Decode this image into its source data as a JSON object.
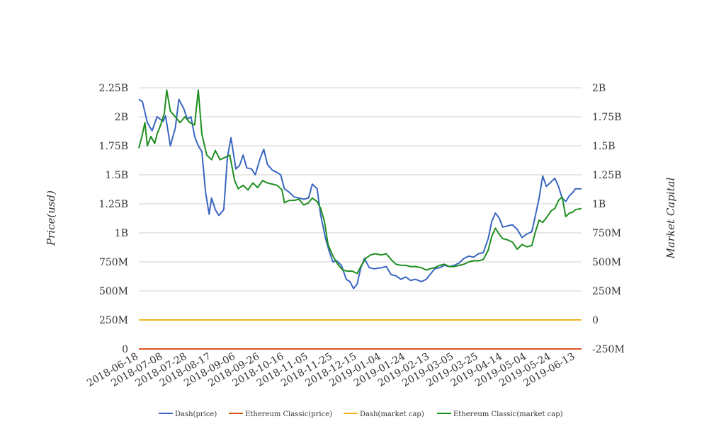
{
  "chart_data": {
    "type": "line",
    "title": "",
    "ylabel_left": "Price(usd)",
    "ylabel_right": "Market Capital",
    "grid": true,
    "legend_position": "bottom",
    "x_ticks": [
      "2018-06-18",
      "2018-07-08",
      "2018-07-28",
      "2018-08-17",
      "2018-09-06",
      "2018-09-26",
      "2018-10-16",
      "2018-11-05",
      "2018-11-25",
      "2018-12-15",
      "2019-01-04",
      "2019-01-24",
      "2019-02-13",
      "2019-03-05",
      "2019-03-25",
      "2019-04-14",
      "2019-05-04",
      "2019-05-24",
      "2019-06-13"
    ],
    "x_range": [
      "2018-06-18",
      "2019-06-18"
    ],
    "y_left": {
      "min": 0,
      "max": 2250000000,
      "ticks": [
        0,
        250000000,
        500000000,
        750000000,
        1000000000,
        1250000000,
        1500000000,
        1750000000,
        2000000000,
        2250000000
      ],
      "tick_labels": [
        "0",
        "250M",
        "500M",
        "750M",
        "1B",
        "1.25B",
        "1.5B",
        "1.75B",
        "2B",
        "2.25B"
      ]
    },
    "y_right": {
      "min": -250000000,
      "max": 2000000000,
      "ticks": [
        -250000000,
        0,
        250000000,
        500000000,
        750000000,
        1000000000,
        1250000000,
        1500000000,
        1750000000,
        2000000000
      ],
      "tick_labels": [
        "-250M",
        "0",
        "250M",
        "500M",
        "750M",
        "1B",
        "1.25B",
        "1.5B",
        "1.75B",
        "2B"
      ]
    },
    "series": [
      {
        "name": "Dash(price)",
        "axis": "left",
        "color": "#3a66c0",
        "points": [
          [
            "2018-06-18",
            2150000000
          ],
          [
            "2018-06-21",
            2130000000
          ],
          [
            "2018-06-25",
            1950000000
          ],
          [
            "2018-06-29",
            1880000000
          ],
          [
            "2018-07-03",
            2000000000
          ],
          [
            "2018-07-08",
            1960000000
          ],
          [
            "2018-07-10",
            2010000000
          ],
          [
            "2018-07-14",
            1750000000
          ],
          [
            "2018-07-18",
            1900000000
          ],
          [
            "2018-07-21",
            2150000000
          ],
          [
            "2018-07-25",
            2070000000
          ],
          [
            "2018-07-28",
            1980000000
          ],
          [
            "2018-07-31",
            2000000000
          ],
          [
            "2018-08-03",
            1830000000
          ],
          [
            "2018-08-06",
            1750000000
          ],
          [
            "2018-08-09",
            1700000000
          ],
          [
            "2018-08-12",
            1350000000
          ],
          [
            "2018-08-15",
            1160000000
          ],
          [
            "2018-08-17",
            1300000000
          ],
          [
            "2018-08-20",
            1200000000
          ],
          [
            "2018-08-23",
            1150000000
          ],
          [
            "2018-08-27",
            1200000000
          ],
          [
            "2018-08-30",
            1650000000
          ],
          [
            "2018-09-02",
            1820000000
          ],
          [
            "2018-09-06",
            1550000000
          ],
          [
            "2018-09-09",
            1580000000
          ],
          [
            "2018-09-12",
            1670000000
          ],
          [
            "2018-09-15",
            1560000000
          ],
          [
            "2018-09-19",
            1550000000
          ],
          [
            "2018-09-22",
            1500000000
          ],
          [
            "2018-09-26",
            1640000000
          ],
          [
            "2018-09-29",
            1720000000
          ],
          [
            "2018-10-02",
            1590000000
          ],
          [
            "2018-10-06",
            1540000000
          ],
          [
            "2018-10-10",
            1520000000
          ],
          [
            "2018-10-13",
            1500000000
          ],
          [
            "2018-10-16",
            1380000000
          ],
          [
            "2018-10-20",
            1350000000
          ],
          [
            "2018-10-24",
            1310000000
          ],
          [
            "2018-10-28",
            1300000000
          ],
          [
            "2018-11-01",
            1290000000
          ],
          [
            "2018-11-05",
            1300000000
          ],
          [
            "2018-11-08",
            1420000000
          ],
          [
            "2018-11-12",
            1380000000
          ],
          [
            "2018-11-15",
            1150000000
          ],
          [
            "2018-11-19",
            950000000
          ],
          [
            "2018-11-22",
            840000000
          ],
          [
            "2018-11-25",
            750000000
          ],
          [
            "2018-11-28",
            760000000
          ],
          [
            "2018-12-02",
            720000000
          ],
          [
            "2018-12-06",
            600000000
          ],
          [
            "2018-12-09",
            580000000
          ],
          [
            "2018-12-12",
            520000000
          ],
          [
            "2018-12-15",
            560000000
          ],
          [
            "2018-12-18",
            700000000
          ],
          [
            "2018-12-21",
            780000000
          ],
          [
            "2018-12-25",
            700000000
          ],
          [
            "2018-12-29",
            690000000
          ],
          [
            "2019-01-04",
            700000000
          ],
          [
            "2019-01-08",
            710000000
          ],
          [
            "2019-01-12",
            640000000
          ],
          [
            "2019-01-16",
            630000000
          ],
          [
            "2019-01-20",
            600000000
          ],
          [
            "2019-01-24",
            620000000
          ],
          [
            "2019-01-28",
            590000000
          ],
          [
            "2019-02-01",
            600000000
          ],
          [
            "2019-02-06",
            580000000
          ],
          [
            "2019-02-10",
            600000000
          ],
          [
            "2019-02-13",
            640000000
          ],
          [
            "2019-02-17",
            690000000
          ],
          [
            "2019-02-21",
            700000000
          ],
          [
            "2019-02-25",
            720000000
          ],
          [
            "2019-03-01",
            710000000
          ],
          [
            "2019-03-05",
            720000000
          ],
          [
            "2019-03-09",
            740000000
          ],
          [
            "2019-03-13",
            780000000
          ],
          [
            "2019-03-17",
            800000000
          ],
          [
            "2019-03-21",
            790000000
          ],
          [
            "2019-03-25",
            820000000
          ],
          [
            "2019-03-29",
            830000000
          ],
          [
            "2019-04-02",
            950000000
          ],
          [
            "2019-04-05",
            1100000000
          ],
          [
            "2019-04-08",
            1170000000
          ],
          [
            "2019-04-11",
            1130000000
          ],
          [
            "2019-04-14",
            1050000000
          ],
          [
            "2019-04-18",
            1060000000
          ],
          [
            "2019-04-22",
            1070000000
          ],
          [
            "2019-04-26",
            1030000000
          ],
          [
            "2019-04-30",
            960000000
          ],
          [
            "2019-05-04",
            990000000
          ],
          [
            "2019-05-08",
            1010000000
          ],
          [
            "2019-05-11",
            1150000000
          ],
          [
            "2019-05-14",
            1300000000
          ],
          [
            "2019-05-17",
            1490000000
          ],
          [
            "2019-05-20",
            1400000000
          ],
          [
            "2019-05-24",
            1440000000
          ],
          [
            "2019-05-27",
            1470000000
          ],
          [
            "2019-05-30",
            1400000000
          ],
          [
            "2019-06-02",
            1300000000
          ],
          [
            "2019-06-05",
            1270000000
          ],
          [
            "2019-06-08",
            1320000000
          ],
          [
            "2019-06-11",
            1350000000
          ],
          [
            "2019-06-13",
            1380000000
          ],
          [
            "2019-06-18",
            1380000000
          ]
        ]
      },
      {
        "name": "Ethereum Classic(price)",
        "axis": "left",
        "color": "#d6541e",
        "points": [
          [
            "2018-06-18",
            5000
          ],
          [
            "2019-06-18",
            5000
          ]
        ]
      },
      {
        "name": "Dash(market cap)",
        "axis": "right",
        "color": "#f0b61f",
        "points": [
          [
            "2018-06-18",
            0
          ],
          [
            "2019-06-18",
            0
          ]
        ]
      },
      {
        "name": "Ethereum Classic(market cap)",
        "axis": "right",
        "color": "#1f8f1f",
        "points": [
          [
            "2018-06-18",
            1480000000
          ],
          [
            "2018-06-21",
            1600000000
          ],
          [
            "2018-06-23",
            1700000000
          ],
          [
            "2018-06-25",
            1500000000
          ],
          [
            "2018-06-28",
            1580000000
          ],
          [
            "2018-07-01",
            1520000000
          ],
          [
            "2018-07-03",
            1600000000
          ],
          [
            "2018-07-06",
            1680000000
          ],
          [
            "2018-07-09",
            1780000000
          ],
          [
            "2018-07-11",
            1980000000
          ],
          [
            "2018-07-14",
            1800000000
          ],
          [
            "2018-07-18",
            1750000000
          ],
          [
            "2018-07-22",
            1700000000
          ],
          [
            "2018-07-26",
            1750000000
          ],
          [
            "2018-07-30",
            1700000000
          ],
          [
            "2018-08-03",
            1680000000
          ],
          [
            "2018-08-06",
            1980000000
          ],
          [
            "2018-08-09",
            1600000000
          ],
          [
            "2018-08-13",
            1420000000
          ],
          [
            "2018-08-17",
            1380000000
          ],
          [
            "2018-08-20",
            1460000000
          ],
          [
            "2018-08-24",
            1380000000
          ],
          [
            "2018-08-28",
            1400000000
          ],
          [
            "2018-09-01",
            1420000000
          ],
          [
            "2018-09-05",
            1200000000
          ],
          [
            "2018-09-08",
            1130000000
          ],
          [
            "2018-09-12",
            1160000000
          ],
          [
            "2018-09-16",
            1120000000
          ],
          [
            "2018-09-20",
            1180000000
          ],
          [
            "2018-09-24",
            1140000000
          ],
          [
            "2018-09-28",
            1200000000
          ],
          [
            "2018-10-02",
            1180000000
          ],
          [
            "2018-10-06",
            1170000000
          ],
          [
            "2018-10-10",
            1160000000
          ],
          [
            "2018-10-14",
            1120000000
          ],
          [
            "2018-10-16",
            1010000000
          ],
          [
            "2018-10-20",
            1030000000
          ],
          [
            "2018-10-24",
            1030000000
          ],
          [
            "2018-10-28",
            1040000000
          ],
          [
            "2018-11-01",
            990000000
          ],
          [
            "2018-11-05",
            1010000000
          ],
          [
            "2018-11-08",
            1050000000
          ],
          [
            "2018-11-12",
            1020000000
          ],
          [
            "2018-11-15",
            960000000
          ],
          [
            "2018-11-18",
            850000000
          ],
          [
            "2018-11-21",
            650000000
          ],
          [
            "2018-11-25",
            550000000
          ],
          [
            "2018-11-29",
            480000000
          ],
          [
            "2018-12-03",
            430000000
          ],
          [
            "2018-12-07",
            420000000
          ],
          [
            "2018-12-11",
            420000000
          ],
          [
            "2018-12-15",
            400000000
          ],
          [
            "2018-12-18",
            460000000
          ],
          [
            "2018-12-22",
            530000000
          ],
          [
            "2018-12-26",
            560000000
          ],
          [
            "2018-12-30",
            570000000
          ],
          [
            "2019-01-04",
            560000000
          ],
          [
            "2019-01-08",
            570000000
          ],
          [
            "2019-01-12",
            520000000
          ],
          [
            "2019-01-16",
            480000000
          ],
          [
            "2019-01-20",
            470000000
          ],
          [
            "2019-01-24",
            470000000
          ],
          [
            "2019-01-28",
            460000000
          ],
          [
            "2019-02-01",
            460000000
          ],
          [
            "2019-02-06",
            450000000
          ],
          [
            "2019-02-10",
            430000000
          ],
          [
            "2019-02-13",
            440000000
          ],
          [
            "2019-02-17",
            450000000
          ],
          [
            "2019-02-21",
            470000000
          ],
          [
            "2019-02-25",
            480000000
          ],
          [
            "2019-03-01",
            460000000
          ],
          [
            "2019-03-05",
            460000000
          ],
          [
            "2019-03-09",
            470000000
          ],
          [
            "2019-03-13",
            480000000
          ],
          [
            "2019-03-17",
            500000000
          ],
          [
            "2019-03-21",
            510000000
          ],
          [
            "2019-03-25",
            510000000
          ],
          [
            "2019-03-29",
            520000000
          ],
          [
            "2019-04-02",
            600000000
          ],
          [
            "2019-04-05",
            720000000
          ],
          [
            "2019-04-08",
            790000000
          ],
          [
            "2019-04-11",
            740000000
          ],
          [
            "2019-04-14",
            700000000
          ],
          [
            "2019-04-18",
            690000000
          ],
          [
            "2019-04-22",
            670000000
          ],
          [
            "2019-04-26",
            610000000
          ],
          [
            "2019-04-30",
            650000000
          ],
          [
            "2019-05-04",
            630000000
          ],
          [
            "2019-05-08",
            640000000
          ],
          [
            "2019-05-11",
            760000000
          ],
          [
            "2019-05-14",
            860000000
          ],
          [
            "2019-05-17",
            840000000
          ],
          [
            "2019-05-20",
            880000000
          ],
          [
            "2019-05-24",
            940000000
          ],
          [
            "2019-05-27",
            960000000
          ],
          [
            "2019-05-30",
            1030000000
          ],
          [
            "2019-06-02",
            1060000000
          ],
          [
            "2019-06-05",
            890000000
          ],
          [
            "2019-06-08",
            920000000
          ],
          [
            "2019-06-11",
            930000000
          ],
          [
            "2019-06-13",
            950000000
          ],
          [
            "2019-06-18",
            960000000
          ]
        ]
      }
    ]
  }
}
